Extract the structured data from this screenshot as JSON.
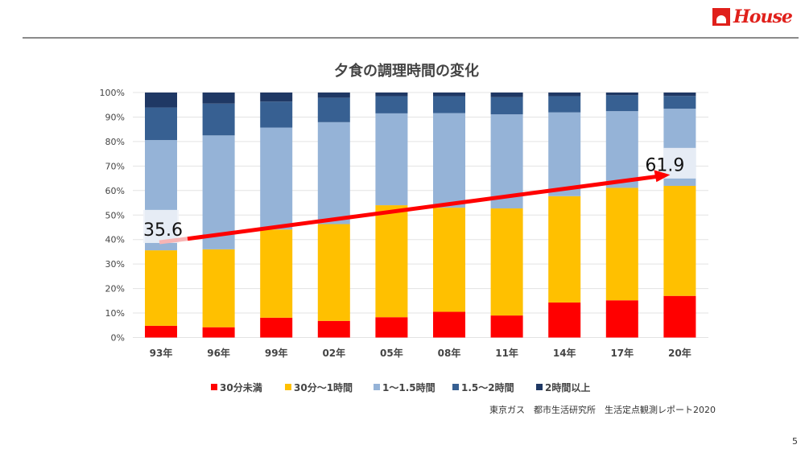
{
  "logo": {
    "text": "House"
  },
  "source": "東京ガス　都市生活研究所　生活定点観測レポート2020",
  "page_number": "5",
  "chart_data": {
    "type": "bar",
    "stacked": true,
    "percent": true,
    "title": "夕食の調理時間の変化",
    "categories": [
      "93年",
      "96年",
      "99年",
      "02年",
      "05年",
      "08年",
      "11年",
      "14年",
      "17年",
      "20年"
    ],
    "yticks": [
      "0%",
      "10%",
      "20%",
      "30%",
      "40%",
      "50%",
      "60%",
      "70%",
      "80%",
      "90%",
      "100%"
    ],
    "ylim": [
      0,
      100
    ],
    "grid": true,
    "legend_position": "bottom",
    "series": [
      {
        "name": "30分未満",
        "color": "#ff0000",
        "values": [
          4.8,
          4.2,
          8.1,
          6.8,
          8.3,
          10.5,
          9.0,
          14.3,
          15.2,
          17.0
        ]
      },
      {
        "name": "30分〜1時間",
        "color": "#ffc000",
        "values": [
          30.8,
          31.8,
          36.0,
          39.5,
          45.7,
          42.5,
          43.7,
          43.4,
          45.9,
          44.9
        ]
      },
      {
        "name": "1〜1.5時間",
        "color": "#95b3d7",
        "values": [
          45.0,
          46.5,
          41.6,
          41.6,
          37.5,
          38.6,
          38.4,
          34.2,
          31.3,
          31.5
        ]
      },
      {
        "name": "1.5〜2時間",
        "color": "#376092",
        "values": [
          13.3,
          13.0,
          10.6,
          10.0,
          7.0,
          6.9,
          7.0,
          6.6,
          6.5,
          5.2
        ]
      },
      {
        "name": "2時間以上",
        "color": "#1f3864",
        "values": [
          6.1,
          4.5,
          3.7,
          2.1,
          1.5,
          1.5,
          1.9,
          1.5,
          1.1,
          1.4
        ]
      }
    ],
    "annotations": [
      {
        "text": "35.6",
        "category": "93年",
        "value": 35.6
      },
      {
        "text": "61.9",
        "category": "20年",
        "value": 61.9
      }
    ],
    "trend_arrow_color": "#ff0000"
  }
}
